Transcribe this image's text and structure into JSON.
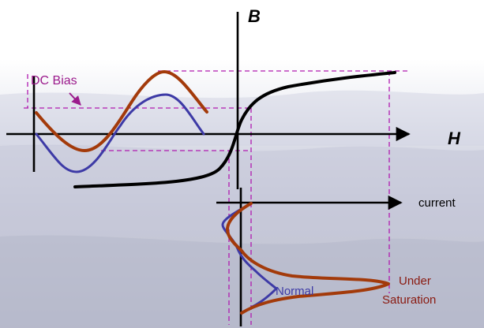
{
  "labels": {
    "b_axis": "B",
    "h_axis": "H",
    "current_axis": "current",
    "dc_bias": "DC Bias",
    "normal": "Normal",
    "under_line1": "Under",
    "under_line2": "Saturation"
  },
  "colors": {
    "axis": "#000000",
    "bh_curve": "#000000",
    "normal_wave": "#3d3aa6",
    "saturation_wave": "#a33a0a",
    "guides": "#b01ab0",
    "dc_bias_text": "#9b1a8c",
    "normal_text": "#3d3aa6",
    "under_text": "#8a1a10"
  }
}
